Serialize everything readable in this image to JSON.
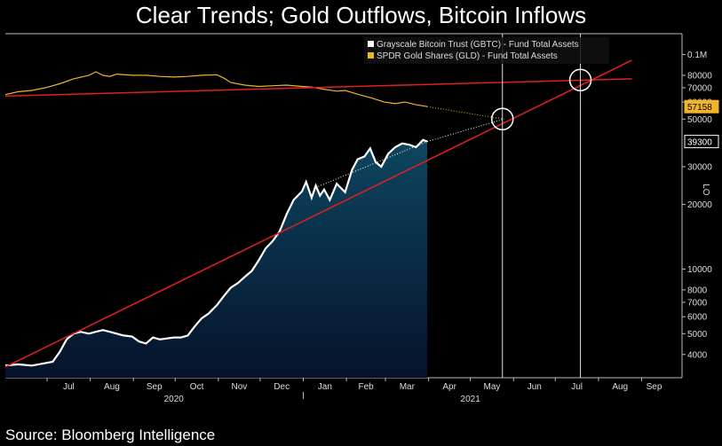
{
  "title": "Clear Trends; Gold Outflows, Bitcoin Inflows",
  "source": "Source: Bloomberg Intelligence",
  "colors": {
    "background": "#000000",
    "gbtc": "#ffffff",
    "gld": "#f0b429",
    "trend": "#e02020",
    "fill_top": "#0e4660",
    "fill_bottom": "#05122a",
    "axis": "#bbbbbb"
  },
  "chart_data": {
    "type": "line",
    "y_scale": "log",
    "ylim": [
      3300,
      125000
    ],
    "y_ticks": [
      {
        "v": 4000,
        "label": "4000"
      },
      {
        "v": 5000,
        "label": "5000"
      },
      {
        "v": 6000,
        "label": "6000"
      },
      {
        "v": 7000,
        "label": "7000"
      },
      {
        "v": 8000,
        "label": "8000"
      },
      {
        "v": 10000,
        "label": "10000"
      },
      {
        "v": 20000,
        "label": "20000"
      },
      {
        "v": 30000,
        "label": "30000"
      },
      {
        "v": 50000,
        "label": "50000"
      },
      {
        "v": 60000,
        "label": "60000"
      },
      {
        "v": 70000,
        "label": "70000"
      },
      {
        "v": 80000,
        "label": "80000"
      },
      {
        "v": 100000,
        "label": "0.1M"
      }
    ],
    "xlim": [
      "2020-06-01",
      "2021-09-30"
    ],
    "x_ticks": [
      {
        "d": "2020-07-01",
        "label": "Jul"
      },
      {
        "d": "2020-08-01",
        "label": "Aug"
      },
      {
        "d": "2020-09-01",
        "label": "Sep"
      },
      {
        "d": "2020-10-01",
        "label": "Oct"
      },
      {
        "d": "2020-11-01",
        "label": "Nov"
      },
      {
        "d": "2020-12-01",
        "label": "Dec"
      },
      {
        "d": "2021-01-01",
        "label": "Jan"
      },
      {
        "d": "2021-02-01",
        "label": "Feb"
      },
      {
        "d": "2021-03-01",
        "label": "Mar"
      },
      {
        "d": "2021-04-01",
        "label": "Apr"
      },
      {
        "d": "2021-05-01",
        "label": "May"
      },
      {
        "d": "2021-06-01",
        "label": "Jun"
      },
      {
        "d": "2021-07-01",
        "label": "Jul"
      },
      {
        "d": "2021-08-01",
        "label": "Aug"
      },
      {
        "d": "2021-09-01",
        "label": "Sep"
      }
    ],
    "year_labels": [
      {
        "d": "2020-09-30",
        "label": "2020"
      },
      {
        "d": "2021-05-01",
        "label": "2021"
      }
    ],
    "right_axis_label": "LO",
    "legend": {
      "placement": "top-right",
      "entries": [
        {
          "name": "Grayscale Bitcoin Trust (GBTC) - Fund Total Assets",
          "color": "#ffffff"
        },
        {
          "name": "SPDR Gold Shares (GLD) - Fund Total Assets",
          "color": "#f0b429"
        }
      ]
    },
    "series": [
      {
        "name": "Grayscale Bitcoin Trust (GBTC) - Fund Total Assets",
        "color": "#ffffff",
        "area_fill": true,
        "last_value_label": "39300",
        "x": [
          "2020-06-01",
          "2020-06-10",
          "2020-06-20",
          "2020-06-30",
          "2020-07-05",
          "2020-07-10",
          "2020-07-15",
          "2020-07-20",
          "2020-07-25",
          "2020-07-31",
          "2020-08-05",
          "2020-08-10",
          "2020-08-15",
          "2020-08-20",
          "2020-08-25",
          "2020-08-31",
          "2020-09-05",
          "2020-09-10",
          "2020-09-15",
          "2020-09-20",
          "2020-09-25",
          "2020-09-30",
          "2020-10-05",
          "2020-10-10",
          "2020-10-15",
          "2020-10-20",
          "2020-10-25",
          "2020-10-31",
          "2020-11-05",
          "2020-11-10",
          "2020-11-15",
          "2020-11-20",
          "2020-11-25",
          "2020-11-30",
          "2020-12-05",
          "2020-12-10",
          "2020-12-15",
          "2020-12-20",
          "2020-12-25",
          "2020-12-31",
          "2021-01-03",
          "2021-01-07",
          "2021-01-10",
          "2021-01-13",
          "2021-01-16",
          "2021-01-20",
          "2021-01-25",
          "2021-01-31",
          "2021-02-05",
          "2021-02-09",
          "2021-02-14",
          "2021-02-18",
          "2021-02-22",
          "2021-02-26",
          "2021-03-03",
          "2021-03-08",
          "2021-03-13",
          "2021-03-18",
          "2021-03-23",
          "2021-03-28",
          "2021-03-31"
        ],
        "values": [
          3550,
          3600,
          3550,
          3650,
          3700,
          4100,
          4700,
          5000,
          5100,
          5000,
          5100,
          5200,
          5100,
          5000,
          4900,
          4850,
          4600,
          4500,
          4800,
          4700,
          4750,
          4800,
          4800,
          4900,
          5400,
          5900,
          6200,
          6800,
          7500,
          8200,
          8600,
          9200,
          9800,
          11000,
          12500,
          13500,
          15000,
          18000,
          21000,
          23000,
          25500,
          21500,
          24500,
          22000,
          23500,
          21000,
          25000,
          22800,
          29000,
          32500,
          33500,
          36500,
          31500,
          30000,
          34500,
          37000,
          38500,
          38000,
          37000,
          40000,
          39300
        ]
      },
      {
        "name": "SPDR Gold Shares (GLD) - Fund Total Assets",
        "color": "#f0b429",
        "last_value_label": "57158",
        "x": [
          "2020-06-01",
          "2020-06-10",
          "2020-06-20",
          "2020-06-30",
          "2020-07-10",
          "2020-07-20",
          "2020-07-31",
          "2020-08-05",
          "2020-08-10",
          "2020-08-15",
          "2020-08-20",
          "2020-08-31",
          "2020-09-10",
          "2020-09-20",
          "2020-09-30",
          "2020-10-10",
          "2020-10-20",
          "2020-10-31",
          "2020-11-05",
          "2020-11-10",
          "2020-11-20",
          "2020-11-30",
          "2020-12-10",
          "2020-12-20",
          "2020-12-31",
          "2021-01-07",
          "2021-01-15",
          "2021-01-25",
          "2021-01-31",
          "2021-02-10",
          "2021-02-20",
          "2021-02-28",
          "2021-03-08",
          "2021-03-15",
          "2021-03-22",
          "2021-03-31"
        ],
        "values": [
          65000,
          67000,
          68000,
          70000,
          73000,
          77000,
          80000,
          83000,
          80000,
          79000,
          81000,
          80000,
          80000,
          79000,
          78500,
          79000,
          80000,
          80500,
          77500,
          74000,
          72000,
          71000,
          71500,
          72000,
          71000,
          70500,
          69000,
          67500,
          68000,
          65000,
          62500,
          60000,
          59000,
          60000,
          58500,
          57158
        ]
      }
    ],
    "annotations": [
      {
        "type": "trend",
        "color": "#e02020",
        "from": {
          "d": "2020-06-01",
          "v": 3500
        },
        "to": {
          "d": "2021-08-25",
          "v": 94000
        }
      },
      {
        "type": "trend",
        "color": "#e02020",
        "from": {
          "d": "2020-06-01",
          "v": 64000
        },
        "to": {
          "d": "2021-08-25",
          "v": 77000
        }
      },
      {
        "type": "dotted",
        "color": "#f0b429",
        "from": {
          "d": "2021-03-31",
          "v": 57158
        },
        "to": {
          "d": "2021-05-25",
          "v": 50000
        }
      },
      {
        "type": "dotted",
        "color": "#ffffff",
        "from": {
          "d": "2021-01-10",
          "v": 24000
        },
        "to": {
          "d": "2021-03-31",
          "v": 39300
        }
      },
      {
        "type": "dotted",
        "color": "#ffffff",
        "from": {
          "d": "2021-03-31",
          "v": 39300
        },
        "to": {
          "d": "2021-05-25",
          "v": 50000
        }
      },
      {
        "type": "vline",
        "color": "#dddddd",
        "d": "2021-05-24"
      },
      {
        "type": "vline",
        "color": "#dddddd",
        "d": "2021-07-19"
      },
      {
        "type": "circle",
        "color": "#ffffff",
        "d": "2021-05-24",
        "v": 50000
      },
      {
        "type": "circle",
        "color": "#ffffff",
        "d": "2021-07-19",
        "v": 76000
      }
    ]
  }
}
